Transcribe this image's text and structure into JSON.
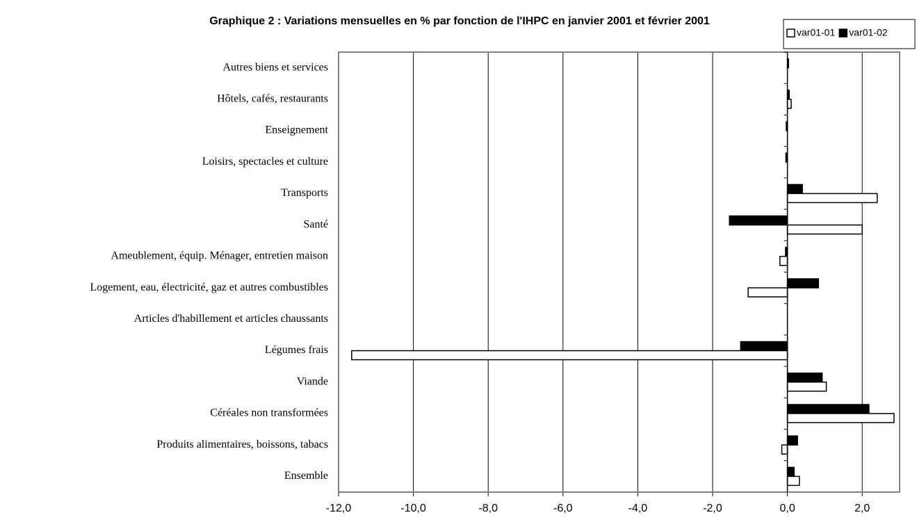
{
  "chart_data": {
    "type": "hbar",
    "title": "Graphique 2 : Variations mensuelles en % par fonction de l'IHPC en janvier 2001 et février 2001",
    "categories": [
      "Autres biens et services",
      "Hôtels, cafés, restaurants",
      "Enseignement",
      "Loisirs, spectacles et culture",
      "Transports",
      "Santé",
      "Ameublement, équip. Ménager, entretien maison",
      "Logement, eau, électricité, gaz et autres combustibles",
      "Articles d'habillement et articles chaussants",
      "Légumes frais",
      "Viande",
      "Céréales non transformées",
      "Produits alimentaires, boissons, tabacs",
      "Ensemble"
    ],
    "series": [
      {
        "name": "var01-01",
        "color": "#ffffff",
        "values": [
          0,
          0.1,
          0,
          0,
          2.4,
          2.0,
          -0.2,
          -1.05,
          0,
          -11.65,
          1.04,
          2.85,
          -0.15,
          0.32
        ]
      },
      {
        "name": "var01-02",
        "color": "#000000",
        "values": [
          0.03,
          0.05,
          -0.03,
          -0.04,
          0.4,
          -1.55,
          -0.05,
          0.83,
          0,
          -1.25,
          0.93,
          2.18,
          0.27,
          0.18
        ]
      }
    ],
    "xlim": [
      -12,
      3
    ],
    "xticks": [
      {
        "value": -12,
        "label": "-12,0"
      },
      {
        "value": -10,
        "label": "-10,0"
      },
      {
        "value": -8,
        "label": "-8,0"
      },
      {
        "value": -6,
        "label": "-6,0"
      },
      {
        "value": -4,
        "label": "-4,0"
      },
      {
        "value": -2,
        "label": "-2,0"
      },
      {
        "value": 0,
        "label": "0,0"
      },
      {
        "value": 2,
        "label": "2,0"
      }
    ],
    "grid": true,
    "legend": "top-right"
  }
}
